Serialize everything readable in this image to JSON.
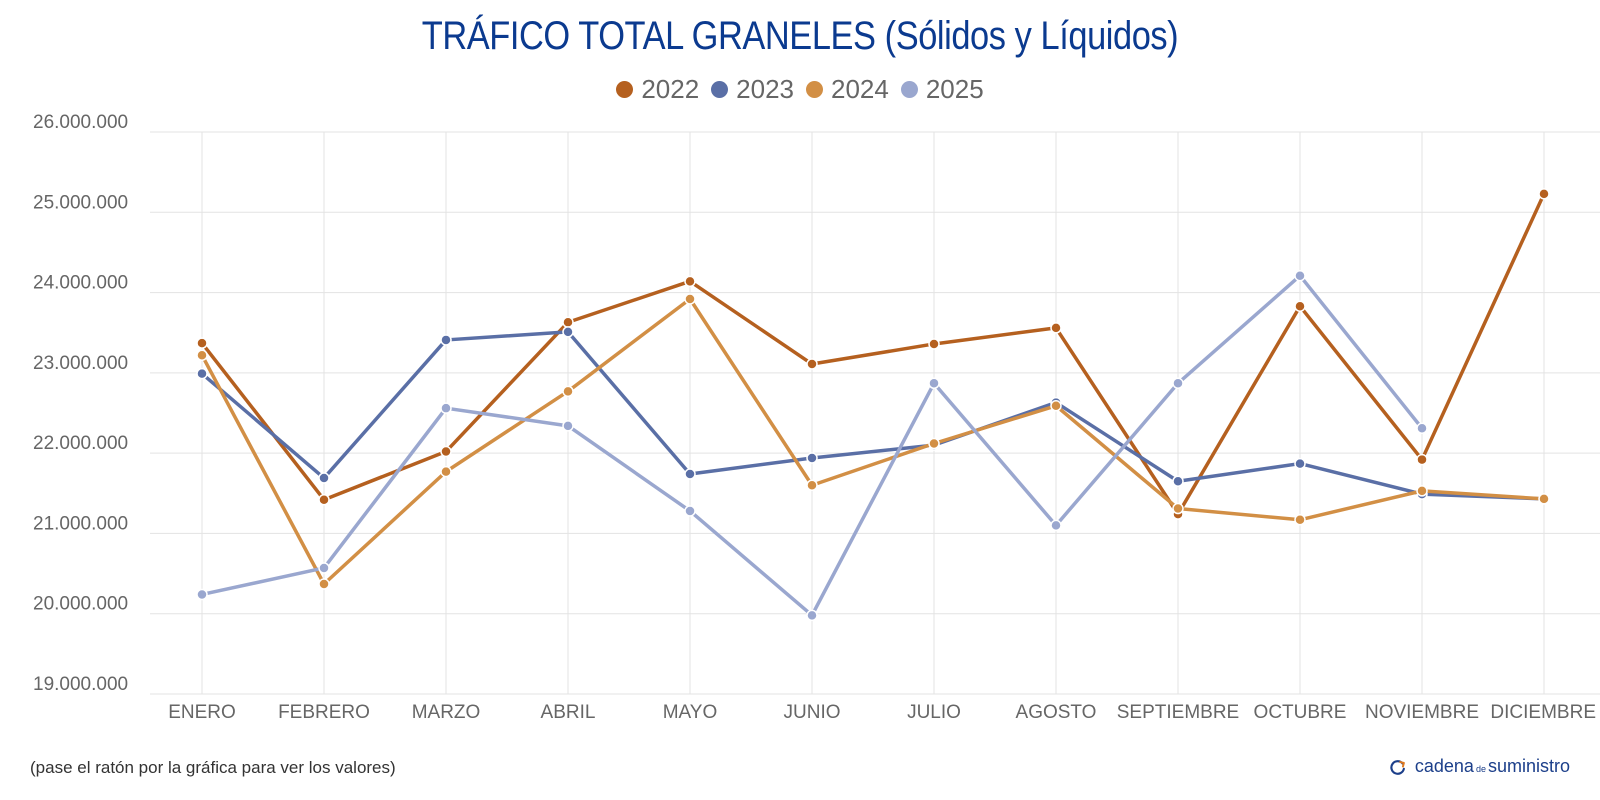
{
  "chart_data": {
    "type": "line",
    "title": "TRÁFICO TOTAL GRANELES (Sólidos y Líquidos)",
    "xlabel": "",
    "ylabel": "",
    "categories": [
      "ENERO",
      "FEBRERO",
      "MARZO",
      "ABRIL",
      "MAYO",
      "JUNIO",
      "JULIO",
      "AGOSTO",
      "SEPTIEMBRE",
      "OCTUBRE",
      "NOVIEMBRE",
      "DICIEMBRE"
    ],
    "ylim": [
      19000000,
      26000000
    ],
    "yticks": [
      19000000,
      20000000,
      21000000,
      22000000,
      23000000,
      24000000,
      25000000,
      26000000
    ],
    "ytick_labels": [
      "19.000.000",
      "20.000.000",
      "21.000.000",
      "22.000.000",
      "23.000.000",
      "24.000.000",
      "25.000.000",
      "26.000.000"
    ],
    "grid": true,
    "legend_position": "top-center",
    "series": [
      {
        "name": "2022",
        "color": "#b5601f",
        "values": [
          23370000,
          21420000,
          22020000,
          23630000,
          24140000,
          23110000,
          23360000,
          23560000,
          21240000,
          23830000,
          21920000,
          25230000
        ]
      },
      {
        "name": "2023",
        "color": "#5a6fa6",
        "values": [
          22990000,
          21690000,
          23410000,
          23510000,
          21740000,
          21940000,
          22100000,
          22630000,
          21650000,
          21870000,
          21490000,
          21430000
        ]
      },
      {
        "name": "2024",
        "color": "#d28f45",
        "values": [
          23220000,
          20370000,
          21770000,
          22770000,
          23920000,
          21600000,
          22120000,
          22590000,
          21310000,
          21170000,
          21530000,
          21430000
        ]
      },
      {
        "name": "2025",
        "color": "#9aa7cf",
        "values": [
          20240000,
          20570000,
          22560000,
          22340000,
          21280000,
          19980000,
          22870000,
          21100000,
          22870000,
          24210000,
          22310000,
          null
        ]
      }
    ]
  },
  "footnote": "(pase el ratón por la gráfica para ver los valores)",
  "brand": {
    "part1": "cadena",
    "part2": "de",
    "part3": "suministro",
    "icon": "refresh-arrow-icon",
    "color": "#1c3f8a"
  }
}
